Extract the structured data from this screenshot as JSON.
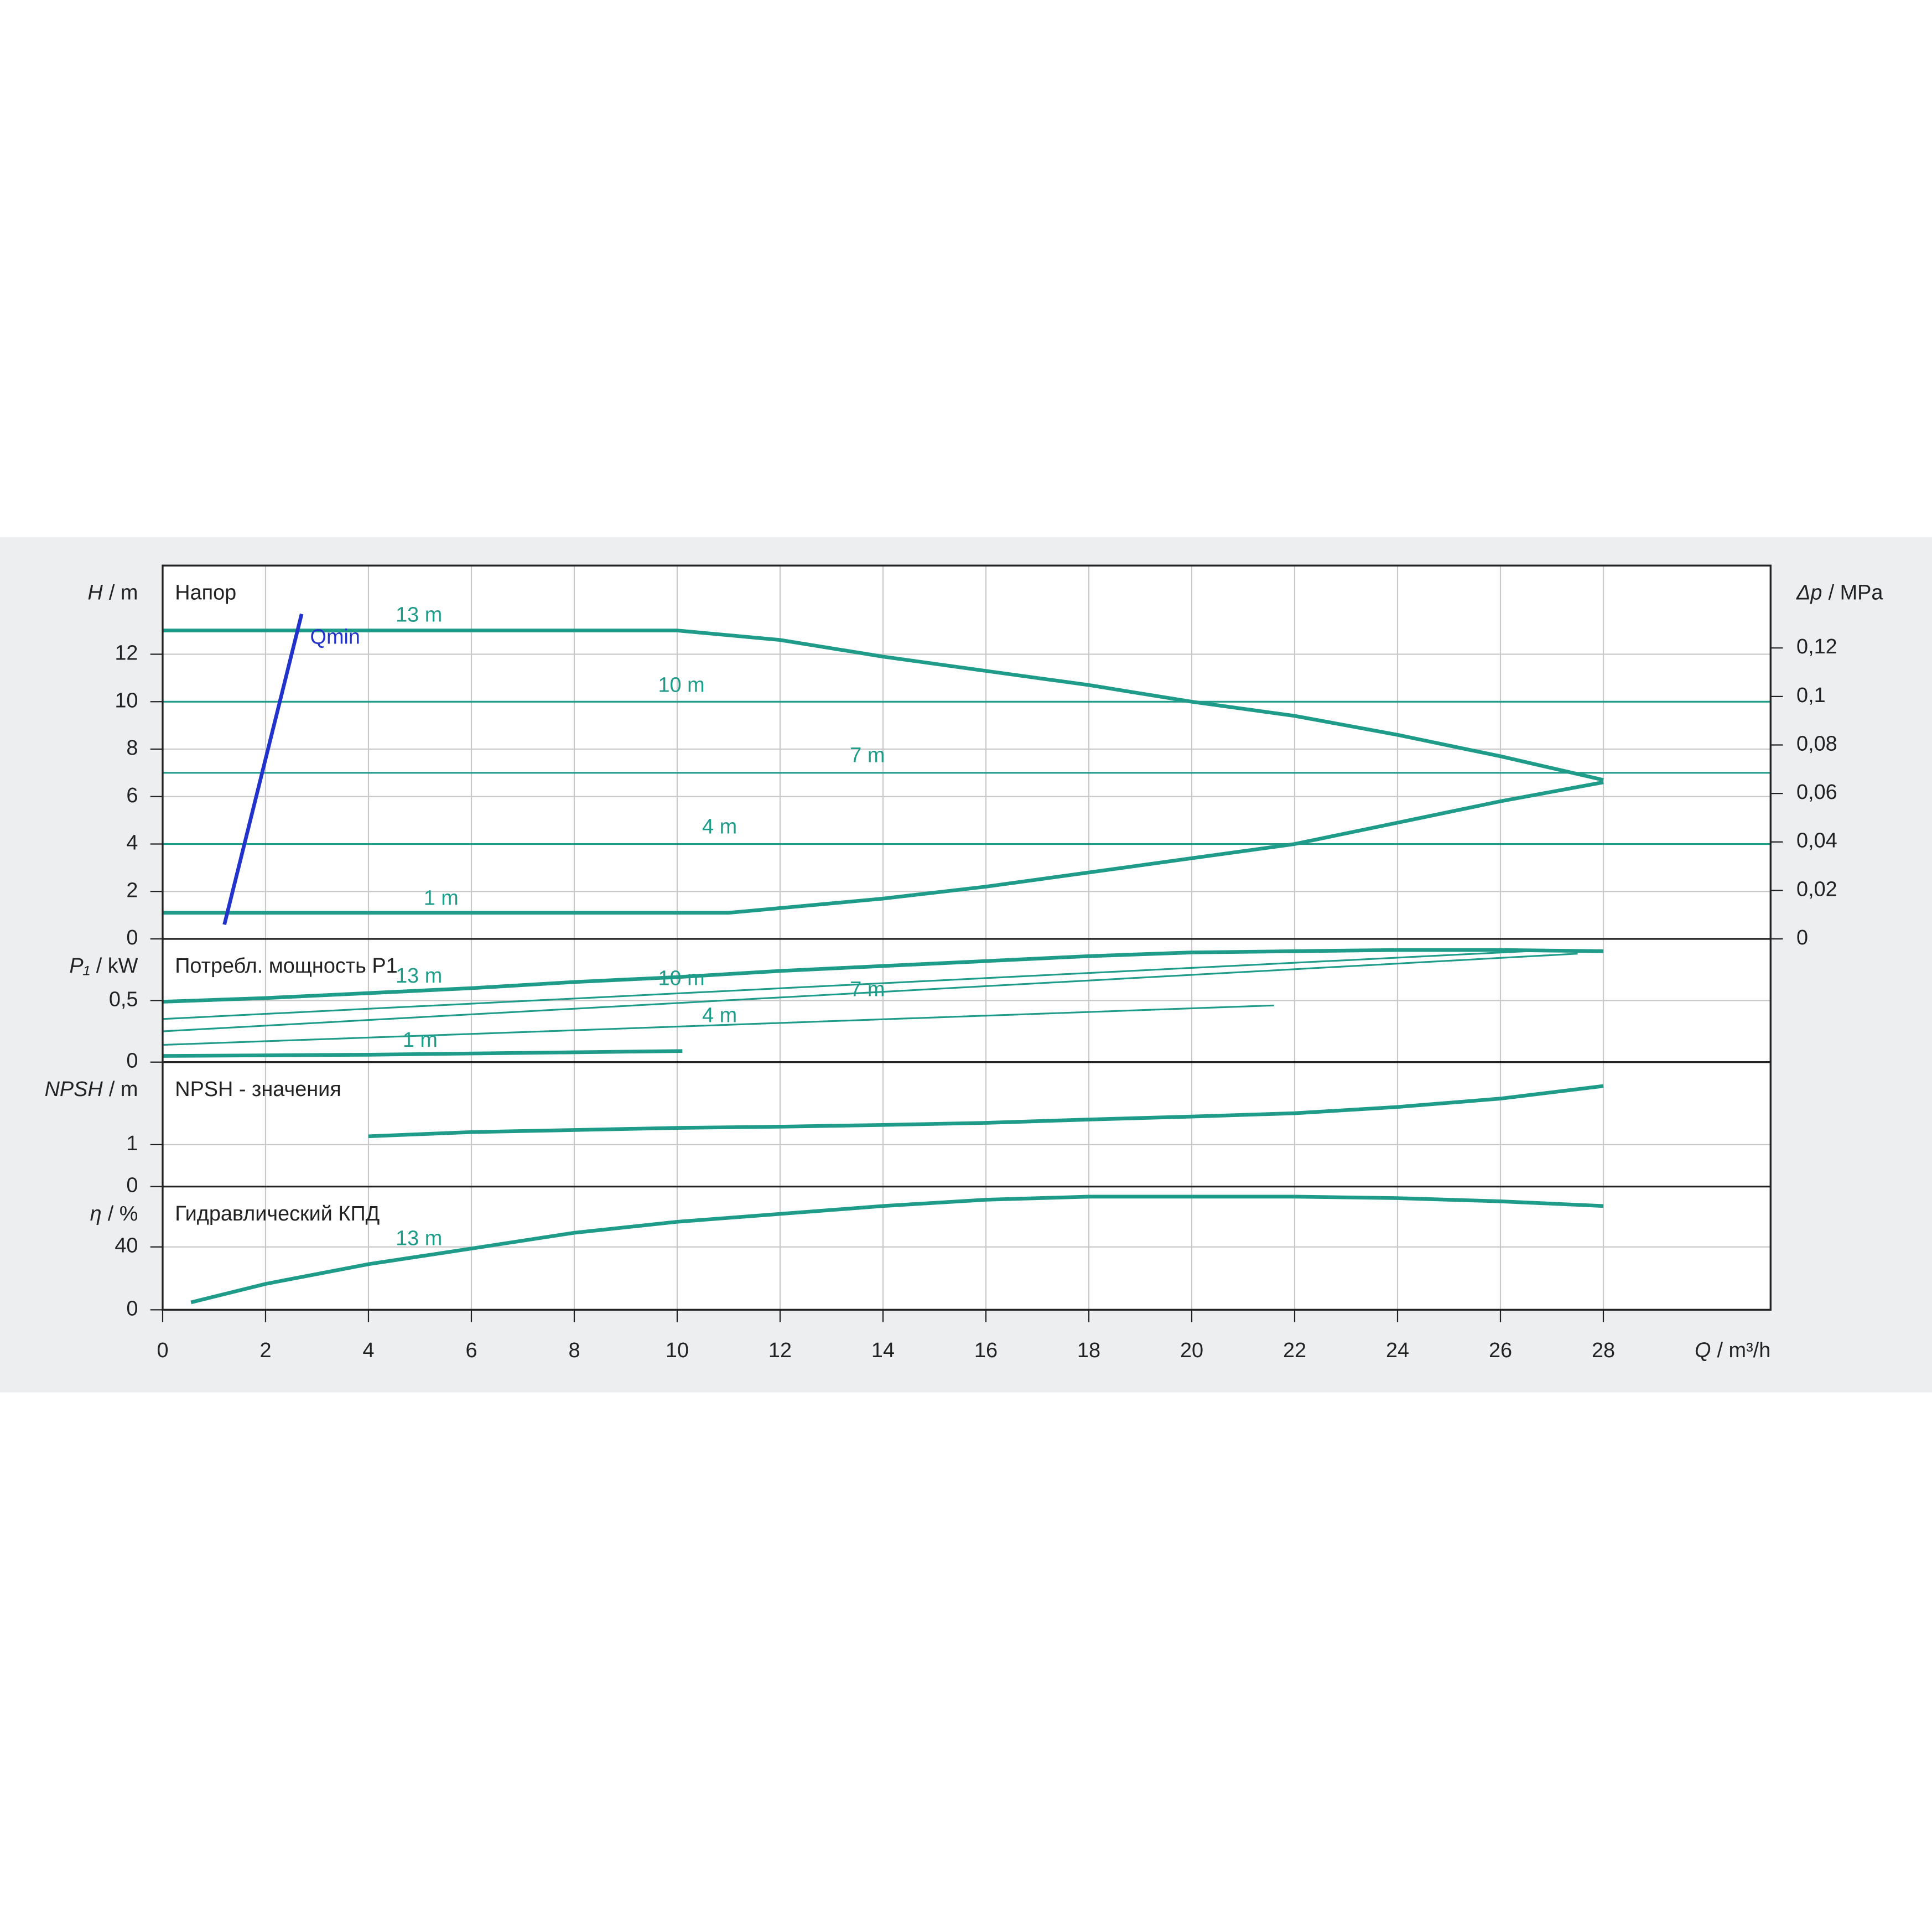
{
  "chart_data": [
    {
      "type": "line",
      "title": "Напор",
      "y_symbol": "H",
      "y_unit": "/ m",
      "ylim": [
        0,
        15.74
      ],
      "yticks": [
        0,
        2,
        4,
        6,
        8,
        10,
        12
      ],
      "y2_symbol": "Δp",
      "y2_unit": "/ MPa",
      "y2lim": [
        0,
        0.154
      ],
      "y2ticks": [
        0,
        {
          "value": 0.02,
          "label": "0,02"
        },
        {
          "value": 0.04,
          "label": "0,04"
        },
        {
          "value": 0.06,
          "label": "0,06"
        },
        {
          "value": 0.08,
          "label": "0,08"
        },
        {
          "value": 0.1,
          "label": "0,1"
        },
        {
          "value": 0.12,
          "label": "0,12"
        }
      ],
      "grid": true,
      "series": [
        {
          "name": "13 m",
          "color": "#1e9c89",
          "x": [
            0,
            10,
            12,
            14,
            16,
            18,
            20,
            22,
            24,
            26,
            28
          ],
          "values": [
            13,
            13,
            12.6,
            11.9,
            11.3,
            10.7,
            10.0,
            9.4,
            8.6,
            7.7,
            6.7
          ]
        },
        {
          "name": "10 m",
          "color": "#1e9c89",
          "x": [
            0,
            31.25
          ],
          "values": [
            10,
            10
          ]
        },
        {
          "name": "7 m",
          "color": "#1e9c89",
          "x": [
            0,
            31.25
          ],
          "values": [
            7,
            7
          ]
        },
        {
          "name": "4 m",
          "color": "#1e9c89",
          "x": [
            0,
            31.25
          ],
          "values": [
            4,
            4
          ]
        },
        {
          "name": "1 m",
          "color": "#1e9c89",
          "x": [
            0,
            11,
            12,
            14,
            16,
            18,
            20,
            22,
            24,
            26,
            28
          ],
          "values": [
            1.1,
            1.1,
            1.3,
            1.7,
            2.2,
            2.8,
            3.4,
            4.0,
            4.9,
            5.8,
            6.6
          ]
        },
        {
          "name": "Qmin",
          "color": "#2233cc",
          "x": [
            1.2,
            2.7
          ],
          "values": [
            0.6,
            13.7
          ]
        }
      ]
    },
    {
      "type": "line",
      "title": "Потребл. мощность P1",
      "y_symbol": "P₁",
      "y_unit": "/ kW",
      "ylim": [
        0,
        1.0
      ],
      "yticks": [
        0,
        {
          "value": 0.5,
          "label": "0,5"
        }
      ],
      "grid": true,
      "series": [
        {
          "name": "13 m",
          "color": "#1e9c89",
          "x": [
            0,
            2,
            4,
            6,
            8,
            10,
            12,
            14,
            16,
            18,
            20,
            22,
            24,
            26,
            28
          ],
          "values": [
            0.49,
            0.52,
            0.56,
            0.6,
            0.65,
            0.69,
            0.74,
            0.78,
            0.82,
            0.86,
            0.89,
            0.9,
            0.91,
            0.91,
            0.9
          ]
        },
        {
          "name": "10 m",
          "color": "#1e9c89",
          "x": [
            0,
            27
          ],
          "values": [
            0.35,
            0.91
          ]
        },
        {
          "name": "7 m",
          "color": "#1e9c89",
          "x": [
            0,
            27.5
          ],
          "values": [
            0.25,
            0.88
          ]
        },
        {
          "name": "4 m",
          "color": "#1e9c89",
          "x": [
            0,
            21.6
          ],
          "values": [
            0.14,
            0.46
          ]
        },
        {
          "name": "1 m",
          "color": "#1e9c89",
          "x": [
            0,
            4,
            10.1
          ],
          "values": [
            0.05,
            0.06,
            0.09
          ]
        }
      ]
    },
    {
      "type": "line",
      "title": "NPSH - значения",
      "y_symbol": "NPSH",
      "y_unit": "/ m",
      "ylim": [
        0,
        2.97
      ],
      "yticks": [
        0,
        1
      ],
      "grid": true,
      "series": [
        {
          "color": "#1e9c89",
          "x": [
            4,
            6,
            8,
            10,
            12,
            14,
            16,
            18,
            20,
            22,
            24,
            26,
            28
          ],
          "values": [
            1.2,
            1.3,
            1.35,
            1.4,
            1.43,
            1.47,
            1.52,
            1.6,
            1.67,
            1.75,
            1.9,
            2.1,
            2.4
          ]
        }
      ]
    },
    {
      "type": "line",
      "title": "Гидравлический КПД",
      "y_symbol": "η",
      "y_unit": "/ %",
      "ylim": [
        0,
        78.4
      ],
      "yticks": [
        0,
        40
      ],
      "grid": true,
      "x_symbol": "Q",
      "x_unit": "/ m³/h",
      "xlim": [
        0,
        31.25
      ],
      "xticks": [
        0,
        2,
        4,
        6,
        8,
        10,
        12,
        14,
        16,
        18,
        20,
        22,
        24,
        26,
        28
      ],
      "series": [
        {
          "name": "13 m",
          "color": "#1e9c89",
          "x": [
            0.55,
            2,
            4,
            6,
            8,
            10,
            12,
            14,
            16,
            18,
            20,
            22,
            24,
            26,
            28
          ],
          "values": [
            4.7,
            16.5,
            29,
            39,
            49,
            56,
            61,
            66,
            70,
            72,
            72,
            72,
            71,
            69,
            66
          ]
        }
      ]
    }
  ]
}
